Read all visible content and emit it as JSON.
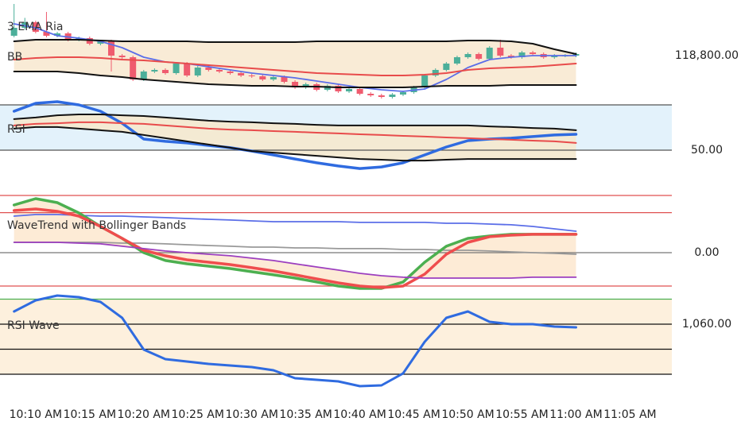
{
  "chart_data": [
    {
      "type": "candlestick",
      "labels": [
        "3 EMA Ria",
        "BB"
      ],
      "ylim": [
        118580,
        119080
      ],
      "yticks": [
        {
          "value": 118800,
          "label": "118,800.00"
        }
      ],
      "up_color": "#4caf9a",
      "down_color": "#ef5b6e",
      "fill": {
        "color": "#f9ebd6",
        "between": [
          1,
          3
        ]
      },
      "candles": {
        "x": [
          608,
          609,
          610,
          611,
          612,
          613,
          614,
          615,
          616,
          617,
          618,
          619,
          620,
          621,
          622,
          623,
          624,
          625,
          626,
          627,
          628,
          629,
          630,
          631,
          632,
          633,
          634,
          635,
          636,
          637,
          638,
          639,
          640,
          641,
          642,
          643,
          644,
          645,
          646,
          647,
          648,
          649,
          650,
          651,
          652,
          653,
          654,
          655,
          656,
          657,
          658,
          659,
          660
        ],
        "open": [
          118900,
          118940,
          118968,
          118920,
          118900,
          118912,
          118880,
          118888,
          118860,
          118872,
          118800,
          118792,
          118680,
          118720,
          118728,
          118712,
          118760,
          118700,
          118740,
          118728,
          118720,
          118712,
          118700,
          118696,
          118680,
          118692,
          118668,
          118640,
          118656,
          118628,
          118648,
          118620,
          118632,
          118608,
          118600,
          118592,
          118604,
          118616,
          118640,
          118700,
          118728,
          118760,
          118792,
          118808,
          118784,
          118840,
          118800,
          118792,
          118816,
          118808,
          118792,
          118800,
          118800
        ],
        "high": [
          119060,
          118990,
          118976,
          119020,
          118920,
          118920,
          118896,
          118896,
          118880,
          118880,
          118808,
          118800,
          118728,
          118736,
          118736,
          118768,
          118768,
          118748,
          118748,
          118736,
          118728,
          118720,
          118708,
          118704,
          118700,
          118700,
          118676,
          118664,
          118664,
          118656,
          118656,
          118640,
          118640,
          118616,
          118608,
          118612,
          118624,
          118648,
          118708,
          118736,
          118768,
          118800,
          118816,
          118816,
          118848,
          118880,
          118808,
          118824,
          118824,
          118816,
          118808,
          118808,
          118816
        ],
        "low": [
          118892,
          118932,
          118912,
          118892,
          118892,
          118872,
          118872,
          118852,
          118852,
          118720,
          118784,
          118672,
          118672,
          118712,
          118704,
          118704,
          118692,
          118692,
          118720,
          118712,
          118704,
          118692,
          118688,
          118672,
          118672,
          118660,
          118632,
          118632,
          118620,
          118620,
          118612,
          118612,
          118600,
          118592,
          118584,
          118584,
          118596,
          118608,
          118632,
          118692,
          118720,
          118752,
          118784,
          118776,
          118776,
          118792,
          118784,
          118784,
          118800,
          118784,
          118784,
          118792,
          118792
        ],
        "close": [
          118940,
          118968,
          118920,
          118900,
          118912,
          118880,
          118888,
          118860,
          118872,
          118800,
          118792,
          118680,
          118720,
          118728,
          118712,
          118760,
          118700,
          118740,
          118728,
          118720,
          118712,
          118700,
          118696,
          118680,
          118692,
          118668,
          118640,
          118656,
          118628,
          118648,
          118620,
          118632,
          118608,
          118600,
          118592,
          118604,
          118616,
          118640,
          118700,
          118728,
          118760,
          118792,
          118808,
          118784,
          118840,
          118800,
          118792,
          118816,
          118808,
          118792,
          118800,
          118800,
          118808
        ]
      },
      "x": [
        608,
        610,
        612,
        614,
        616,
        618,
        620,
        622,
        624,
        626,
        628,
        630,
        632,
        634,
        636,
        638,
        640,
        642,
        644,
        646,
        648,
        650,
        652,
        654,
        656,
        658,
        660
      ],
      "series": [
        {
          "color": "#5b6ee8",
          "line_width": 1.8,
          "values": [
            118960,
            118940,
            118900,
            118888,
            118872,
            118840,
            118792,
            118768,
            118760,
            118744,
            118728,
            118712,
            118700,
            118688,
            118672,
            118656,
            118640,
            118628,
            118620,
            118632,
            118680,
            118740,
            118780,
            118792,
            118800,
            118800,
            118800
          ]
        },
        {
          "color": "#111111",
          "line_width": 2,
          "values": [
            118872,
            118880,
            118880,
            118880,
            118876,
            118872,
            118872,
            118872,
            118872,
            118868,
            118868,
            118868,
            118868,
            118868,
            118872,
            118872,
            118872,
            118872,
            118872,
            118872,
            118872,
            118876,
            118876,
            118872,
            118860,
            118832,
            118808
          ]
        },
        {
          "color": "#e84b4b",
          "line_width": 2,
          "values": [
            118780,
            118788,
            118792,
            118792,
            118788,
            118780,
            118776,
            118768,
            118760,
            118752,
            118744,
            118736,
            118728,
            118720,
            118712,
            118708,
            118704,
            118700,
            118700,
            118704,
            118712,
            118728,
            118736,
            118740,
            118744,
            118752,
            118760
          ]
        },
        {
          "color": "#111111",
          "line_width": 2,
          "values": [
            118720,
            118720,
            118720,
            118712,
            118700,
            118692,
            118680,
            118672,
            118664,
            118656,
            118652,
            118648,
            118648,
            118644,
            118644,
            118640,
            118640,
            118640,
            118640,
            118644,
            118648,
            118648,
            118648,
            118652,
            118652,
            118652,
            118652
          ]
        }
      ]
    },
    {
      "type": "line",
      "title": "RSI",
      "ylim": [
        32.1,
        71.4
      ],
      "yticks": [
        {
          "value": 50,
          "label": "50.00"
        }
      ],
      "levels": [
        {
          "value": 70,
          "color": "#555555"
        },
        {
          "value": 50,
          "color": "#555555"
        }
      ],
      "level_fill": {
        "color": "#e3f2fb",
        "between": [
          0,
          1
        ]
      },
      "fill": {
        "color": "#f4ead3",
        "between": [
          1,
          3
        ]
      },
      "x": [
        608,
        610,
        612,
        614,
        616,
        618,
        620,
        622,
        624,
        626,
        628,
        630,
        632,
        634,
        636,
        638,
        640,
        642,
        644,
        646,
        648,
        650,
        652,
        654,
        656,
        658,
        660
      ],
      "series": [
        {
          "color": "#2f6be0",
          "line_width": 3.5,
          "values": [
            67.2,
            70.7,
            71.4,
            70.0,
            67.2,
            61.9,
            54.9,
            53.9,
            53.2,
            52.1,
            51.1,
            49.6,
            47.9,
            46.1,
            44.4,
            43.0,
            41.9,
            42.6,
            44.4,
            47.9,
            51.4,
            54.2,
            54.9,
            55.3,
            56.0,
            56.7,
            57.0
          ]
        },
        {
          "color": "#111111",
          "line_width": 2,
          "values": [
            63.7,
            64.4,
            65.4,
            65.8,
            65.8,
            65.4,
            65.1,
            64.4,
            63.7,
            63.0,
            62.6,
            62.3,
            61.9,
            61.6,
            61.2,
            60.9,
            60.9,
            60.9,
            60.9,
            60.9,
            60.9,
            60.9,
            60.5,
            60.2,
            59.8,
            59.5,
            58.8
          ]
        },
        {
          "color": "#e84b4b",
          "line_width": 2,
          "values": [
            60.9,
            61.6,
            61.9,
            62.3,
            62.3,
            61.9,
            61.6,
            60.9,
            60.2,
            59.5,
            59.1,
            58.8,
            58.4,
            58.1,
            57.7,
            57.4,
            57.0,
            56.7,
            56.3,
            56.0,
            55.6,
            55.3,
            54.9,
            54.6,
            54.2,
            53.9,
            53.2
          ]
        },
        {
          "color": "#111111",
          "line_width": 2,
          "values": [
            59.5,
            60.2,
            60.2,
            59.5,
            58.8,
            58.1,
            56.7,
            55.3,
            53.9,
            52.5,
            51.1,
            49.6,
            48.9,
            48.2,
            47.5,
            46.8,
            46.1,
            45.8,
            45.4,
            45.4,
            45.8,
            46.1,
            46.1,
            46.1,
            46.1,
            46.1,
            46.1
          ]
        }
      ]
    },
    {
      "type": "line",
      "title": "WaveTrend with Bollinger Bands",
      "ylim": [
        -41.7,
        65
      ],
      "yticks": [
        {
          "value": 0,
          "label": "0.00"
        }
      ],
      "levels": [
        {
          "value": 60,
          "color": "#e05050"
        },
        {
          "value": 42,
          "color": "#e05050"
        },
        {
          "value": 0,
          "color": "#777777"
        },
        {
          "value": -35,
          "color": "#e05050"
        }
      ],
      "fill": {
        "color": "#fdebd6",
        "between": [
          2,
          4
        ]
      },
      "x": [
        608,
        610,
        612,
        614,
        616,
        618,
        620,
        622,
        624,
        626,
        628,
        630,
        632,
        634,
        636,
        638,
        640,
        642,
        644,
        646,
        648,
        650,
        652,
        654,
        656,
        658,
        660
      ],
      "series": [
        {
          "color": "#5b6ee8",
          "line_width": 1.8,
          "values": [
            38.3,
            40.0,
            40.0,
            39.2,
            38.3,
            38.3,
            37.5,
            36.7,
            35.8,
            35.0,
            34.2,
            33.3,
            32.5,
            32.5,
            32.5,
            32.5,
            31.7,
            31.7,
            31.7,
            31.7,
            30.8,
            30.8,
            30.0,
            29.2,
            27.5,
            25.0,
            22.5
          ]
        },
        {
          "color": "#999999",
          "line_width": 1.8,
          "values": [
            10.8,
            10.8,
            10.8,
            10.8,
            10.8,
            10.0,
            10.0,
            9.2,
            8.3,
            7.5,
            6.7,
            5.8,
            5.8,
            5.0,
            5.0,
            4.2,
            4.2,
            4.2,
            3.3,
            3.3,
            2.5,
            2.5,
            1.7,
            0.8,
            0,
            -0.8,
            -1.7
          ]
        },
        {
          "color": "#4caf50",
          "line_width": 3.5,
          "values": [
            50.0,
            56.7,
            52.5,
            41.7,
            27.5,
            15.0,
            0,
            -8.3,
            -11.7,
            -14.2,
            -16.7,
            -20.0,
            -23.3,
            -26.7,
            -30.8,
            -35.0,
            -37.5,
            -37.5,
            -30.8,
            -10.0,
            6.7,
            15.0,
            17.5,
            19.2,
            19.2,
            19.2,
            19.2
          ]
        },
        {
          "color": "#ef4d4d",
          "line_width": 3.5,
          "values": [
            44.2,
            45.8,
            43.3,
            38.3,
            27.5,
            15.0,
            2.5,
            -3.3,
            -7.5,
            -10.0,
            -12.5,
            -15.8,
            -19.2,
            -23.3,
            -27.5,
            -31.7,
            -35.0,
            -36.7,
            -35.0,
            -22.5,
            -1.7,
            10.8,
            16.7,
            18.3,
            19.2,
            19.2,
            19.2
          ]
        },
        {
          "color": "#9c3fbf",
          "line_width": 1.8,
          "values": [
            10.8,
            10.8,
            10.8,
            10.0,
            9.2,
            6.7,
            4.2,
            1.7,
            0,
            -1.7,
            -3.3,
            -5.8,
            -8.3,
            -11.7,
            -15.0,
            -18.3,
            -21.7,
            -24.2,
            -25.8,
            -26.7,
            -26.7,
            -26.7,
            -26.7,
            -26.7,
            -25.8,
            -25.8,
            -25.8
          ]
        }
      ]
    },
    {
      "type": "line",
      "title": "RSI Wave",
      "ylim": [
        981.9,
        1096.2
      ],
      "yticks": [
        {
          "value": 1060,
          "label": "1,060.00"
        }
      ],
      "levels": [
        {
          "value": 1090,
          "color": "#4caf50"
        },
        {
          "value": 1060,
          "color": "#111111"
        },
        {
          "value": 1030,
          "color": "#111111"
        },
        {
          "value": 1000,
          "color": "#111111"
        }
      ],
      "level_fill": {
        "color": "#fdf0dd",
        "between": [
          0,
          3
        ]
      },
      "xlim": [
        606.7,
        668.5
      ],
      "xticks": [
        {
          "value": 610,
          "label": "10:10 AM"
        },
        {
          "value": 615,
          "label": "10:15 AM"
        },
        {
          "value": 620,
          "label": "10:20 AM"
        },
        {
          "value": 625,
          "label": "10:25 AM"
        },
        {
          "value": 630,
          "label": "10:30 AM"
        },
        {
          "value": 635,
          "label": "10:35 AM"
        },
        {
          "value": 640,
          "label": "10:40 AM"
        },
        {
          "value": 645,
          "label": "10:45 AM"
        },
        {
          "value": 650,
          "label": "10:50 AM"
        },
        {
          "value": 655,
          "label": "10:55 AM"
        },
        {
          "value": 660,
          "label": "11:00 AM"
        },
        {
          "value": 665,
          "label": "11:05 AM"
        }
      ],
      "x": [
        608,
        610,
        612,
        614,
        616,
        618,
        620,
        622,
        624,
        626,
        628,
        630,
        632,
        634,
        636,
        638,
        640,
        642,
        644,
        646,
        648,
        650,
        652,
        654,
        656,
        658,
        660
      ],
      "series": [
        {
          "color": "#2f6be0",
          "line_width": 3,
          "values": [
            1075.2,
            1088.6,
            1094.3,
            1092.4,
            1086.7,
            1067.6,
            1029.5,
            1018.1,
            1015.2,
            1012.4,
            1010.5,
            1008.6,
            1004.8,
            995.2,
            993.3,
            991.4,
            985.7,
            986.7,
            1001.0,
            1039.0,
            1067.6,
            1075.2,
            1062.9,
            1060.0,
            1060.0,
            1057.1,
            1056.2
          ]
        }
      ]
    }
  ]
}
